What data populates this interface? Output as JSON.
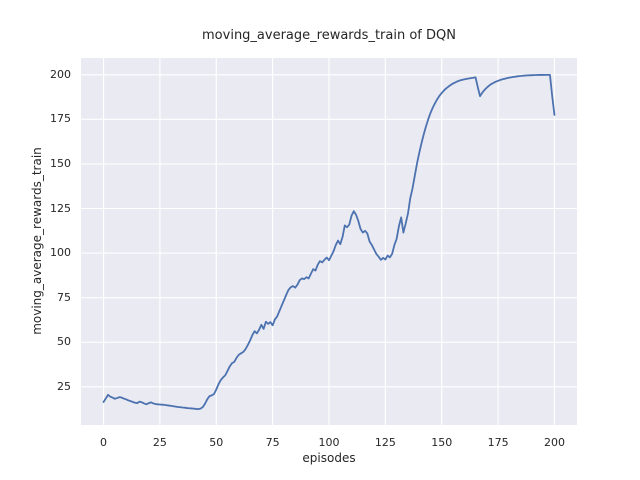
{
  "chart_data": {
    "type": "line",
    "title": "moving_average_rewards_train of DQN",
    "xlabel": "episodes",
    "ylabel": "moving_average_rewards_train",
    "x_start": 0,
    "x_step": 1,
    "values": [
      16.5,
      18.5,
      20.5,
      19.5,
      19.0,
      18.3,
      18.7,
      19.2,
      19.0,
      18.4,
      18.0,
      17.4,
      17.0,
      16.5,
      16.1,
      15.9,
      16.7,
      16.3,
      15.7,
      15.2,
      15.8,
      16.3,
      15.7,
      15.4,
      15.2,
      15.1,
      15.0,
      14.9,
      14.7,
      14.5,
      14.3,
      14.1,
      13.9,
      13.7,
      13.6,
      13.4,
      13.3,
      13.1,
      13.0,
      12.9,
      12.8,
      12.6,
      12.5,
      12.8,
      13.6,
      15.5,
      18.0,
      19.8,
      20.2,
      21.0,
      23.5,
      26.5,
      28.8,
      30.3,
      31.5,
      34.0,
      36.5,
      38.3,
      39.0,
      41.3,
      43.0,
      43.8,
      44.6,
      46.2,
      48.5,
      51.0,
      54.0,
      56.2,
      55.0,
      57.0,
      59.8,
      57.5,
      61.5,
      60.3,
      61.3,
      59.5,
      62.8,
      64.5,
      67.5,
      70.5,
      73.5,
      76.5,
      79.3,
      80.8,
      81.5,
      80.6,
      82.3,
      84.8,
      85.8,
      85.4,
      86.5,
      85.8,
      88.5,
      91.0,
      90.2,
      93.5,
      95.5,
      94.8,
      96.3,
      97.5,
      96.0,
      98.5,
      101.0,
      104.5,
      107.0,
      105.0,
      109.0,
      115.5,
      114.5,
      116.0,
      121.0,
      123.5,
      121.5,
      118.0,
      113.5,
      111.5,
      112.5,
      111.0,
      106.5,
      104.5,
      102.0,
      99.5,
      98.0,
      96.2,
      97.3,
      96.4,
      98.6,
      97.6,
      99.6,
      104.5,
      108.0,
      115.0,
      120.0,
      111.5,
      116.5,
      122.0,
      130.5,
      136.0,
      143.0,
      150.0,
      156.0,
      161.5,
      166.5,
      171.0,
      175.0,
      178.5,
      181.5,
      184.0,
      186.3,
      188.2,
      189.8,
      191.2,
      192.4,
      193.4,
      194.3,
      195.1,
      195.7,
      196.3,
      196.8,
      197.1,
      197.4,
      197.7,
      197.9,
      198.1,
      198.3,
      198.5,
      193.0,
      188.0,
      190.0,
      191.5,
      192.8,
      193.9,
      194.8,
      195.5,
      196.1,
      196.6,
      197.1,
      197.5,
      197.8,
      198.1,
      198.4,
      198.6,
      198.8,
      199.0,
      199.2,
      199.3,
      199.45,
      199.55,
      199.65,
      199.7,
      199.75,
      199.8,
      199.85,
      199.9,
      199.9,
      199.9,
      199.92,
      199.94,
      199.95,
      188.0,
      177.5
    ],
    "xticks": [
      0,
      25,
      50,
      75,
      100,
      125,
      150,
      175,
      200
    ],
    "yticks": [
      25,
      50,
      75,
      100,
      125,
      150,
      175,
      200
    ],
    "xlim": [
      -10,
      210
    ],
    "ylim": [
      3.6,
      209.4
    ],
    "grid": true,
    "legend": null,
    "colors": {
      "line": "#4C72B0",
      "axes_background": "#EAEAF2",
      "grid": "#FFFFFF",
      "text": "#262626",
      "figure_background": "#FFFFFF"
    }
  }
}
